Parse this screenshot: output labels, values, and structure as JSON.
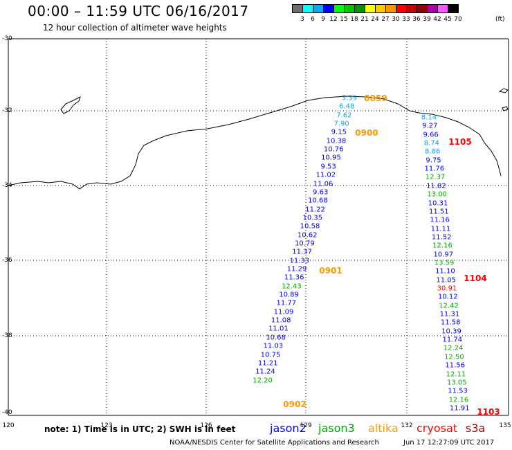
{
  "header": {
    "title": "00:00 – 11:59 UTC 06/16/2017",
    "subtitle": "12 hour collection of altimeter wave heights"
  },
  "scale": {
    "colors": [
      "#6e6e6e",
      "#00ffff",
      "#00aaff",
      "#0000ff",
      "#00ff00",
      "#00c800",
      "#009600",
      "#ffff00",
      "#ffc800",
      "#ff9600",
      "#ff0000",
      "#c80000",
      "#960000",
      "#aa00aa",
      "#ff55ff",
      "#000000"
    ],
    "labels": [
      "3",
      "6",
      "9",
      "12",
      "15",
      "18",
      "21",
      "24",
      "27",
      "30",
      "33",
      "36",
      "39",
      "42",
      "45",
      "70"
    ],
    "unit": "(ft)"
  },
  "axes": {
    "y_labels": [
      "-30",
      "-32",
      "-34",
      "-36",
      "-38",
      "-40"
    ],
    "x_labels": [
      "120",
      "123",
      "126",
      "129",
      "132",
      "135"
    ]
  },
  "colors": {
    "jason2": "#0000ff",
    "jason3": "#00aa00",
    "altika": "#ff9900",
    "cryosat": "#ff0000",
    "s3a": "#aa0000",
    "cyan": "#00aaff"
  },
  "tracks": {
    "west_times": [
      "0859",
      "0900",
      "0901",
      "0902"
    ],
    "west_values": [
      "5.39",
      "6.48",
      "7.62",
      "7.90",
      "9.15",
      "10.38",
      "10.76",
      "10.95",
      "9.53",
      "11.02",
      "11.06",
      "9.63",
      "10.68",
      "11.22",
      "10.35",
      "10.58",
      "10.62",
      "10.79",
      "11.37",
      "11.33",
      "11.29",
      "11.36",
      "12.43",
      "10.89",
      "11.77",
      "11.09",
      "11.08",
      "11.01",
      "10.68",
      "11.03",
      "10.75",
      "11.21",
      "11.24",
      "12.20"
    ],
    "east_times": [
      "1105",
      "1104",
      "1103"
    ],
    "east_values": [
      "8.14",
      "9.27",
      "9.66",
      "8.74",
      "8.86",
      "9.75",
      "11.76",
      "12.37",
      "11.82",
      "13.00",
      "10.31",
      "11.51",
      "11.16",
      "11.11",
      "11.52",
      "12.16",
      "10.97",
      "13.59",
      "11.10",
      "11.05",
      "30.91",
      "10.12",
      "12.42",
      "11.31",
      "11.58",
      "10.39",
      "11.74",
      "12.24",
      "12.50",
      "11.56",
      "12.11",
      "13.05",
      "11.53",
      "12.16",
      "11.91"
    ]
  },
  "footer": {
    "note": "note: 1) Time is in UTC; 2) SWH is in feet",
    "legend": [
      "jason2",
      "jason3",
      "altika",
      "cryosat",
      "s3a"
    ],
    "credit": "NOAA/NESDIS Center for Satellite Applications and Research",
    "timestamp": "Jun 17 12:27:09 UTC 2017"
  }
}
